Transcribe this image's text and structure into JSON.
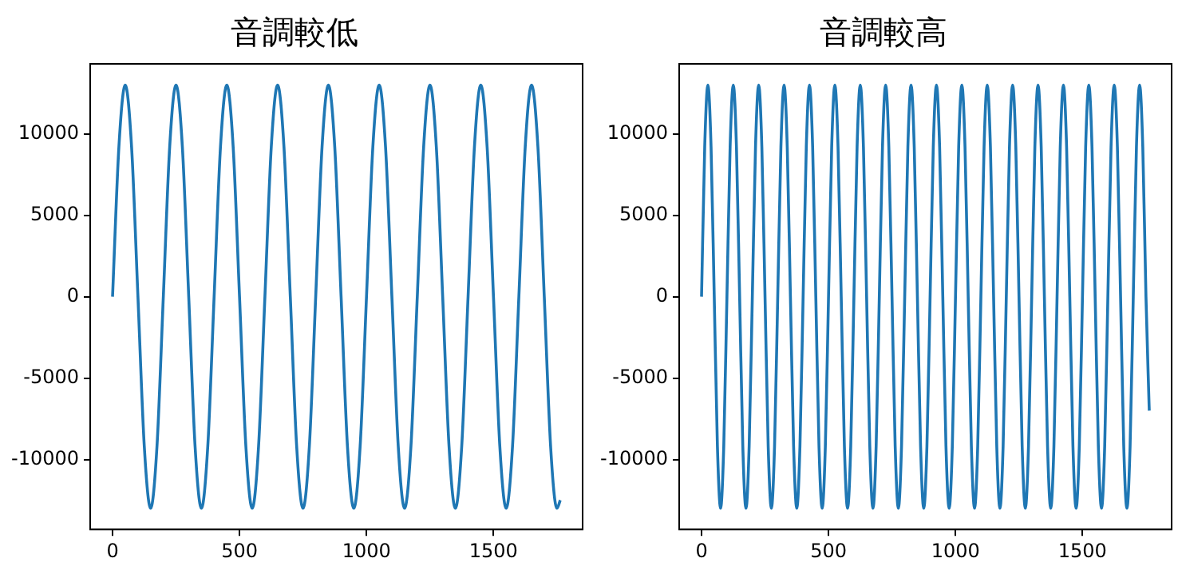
{
  "chart_data": [
    {
      "type": "line",
      "title": "音調較低",
      "marker": "none",
      "grid": false,
      "xlim": [
        -88,
        1851
      ],
      "xticks": [
        0,
        500,
        1000,
        1500
      ],
      "ylim": [
        -14300,
        14300
      ],
      "yticks": [
        -10000,
        -5000,
        0,
        5000,
        10000
      ],
      "series": [
        {
          "color": "#1f77b4",
          "x": [
            0,
            25,
            50,
            75,
            100,
            125,
            150,
            175,
            200,
            225,
            250,
            275,
            300,
            325,
            350,
            375,
            400,
            425,
            450,
            475,
            500,
            525,
            550,
            575,
            600,
            625,
            650,
            675,
            700,
            725,
            750,
            775,
            800,
            825,
            850,
            875,
            900,
            925,
            950,
            975,
            1000,
            1025,
            1050,
            1075,
            1100,
            1125,
            1150,
            1175,
            1200,
            1225,
            1250,
            1275,
            1300,
            1325,
            1350,
            1375,
            1400,
            1425,
            1450,
            1475,
            1500,
            1525,
            1550,
            1575,
            1600,
            1625,
            1650,
            1675,
            1700,
            1725,
            1750,
            1763
          ],
          "values": [
            0,
            9190,
            13000,
            9190,
            0,
            -9190,
            -13000,
            -9190,
            0,
            9190,
            13000,
            9190,
            0,
            -9190,
            -13000,
            -9190,
            0,
            9190,
            13000,
            9190,
            0,
            -9190,
            -13000,
            -9190,
            0,
            9190,
            13000,
            9190,
            0,
            -9190,
            -13000,
            -9190,
            0,
            9190,
            13000,
            9190,
            0,
            -9190,
            -13000,
            -9190,
            0,
            9190,
            13000,
            9190,
            0,
            -9190,
            -13000,
            -9190,
            0,
            9190,
            13000,
            9190,
            0,
            -9190,
            -13000,
            -9190,
            0,
            9190,
            13000,
            9190,
            0,
            -9190,
            -13000,
            -9190,
            0,
            9190,
            13000,
            9190,
            0,
            -9190,
            -13000,
            -12500
          ]
        }
      ]
    },
    {
      "type": "line",
      "title": "音調較高",
      "marker": "none",
      "grid": false,
      "xlim": [
        -88,
        1851
      ],
      "xticks": [
        0,
        500,
        1000,
        1500
      ],
      "ylim": [
        -14300,
        14300
      ],
      "yticks": [
        -10000,
        -5000,
        0,
        5000,
        10000
      ],
      "series": [
        {
          "color": "#1f77b4",
          "x": [
            0,
            12.5,
            25,
            37.5,
            50,
            62.5,
            75,
            87.5,
            100,
            112.5,
            125,
            137.5,
            150,
            162.5,
            175,
            187.5,
            200,
            212.5,
            225,
            237.5,
            250,
            262.5,
            275,
            287.5,
            300,
            312.5,
            325,
            337.5,
            350,
            362.5,
            375,
            387.5,
            400,
            412.5,
            425,
            437.5,
            450,
            462.5,
            475,
            487.5,
            500,
            512.5,
            525,
            537.5,
            550,
            562.5,
            575,
            587.5,
            600,
            612.5,
            625,
            637.5,
            650,
            662.5,
            675,
            687.5,
            700,
            712.5,
            725,
            737.5,
            750,
            762.5,
            775,
            787.5,
            800,
            812.5,
            825,
            837.5,
            850,
            862.5,
            875,
            887.5,
            900,
            912.5,
            925,
            937.5,
            950,
            962.5,
            975,
            987.5,
            1000,
            1012.5,
            1025,
            1037.5,
            1050,
            1062.5,
            1075,
            1087.5,
            1100,
            1112.5,
            1125,
            1137.5,
            1150,
            1162.5,
            1175,
            1187.5,
            1200,
            1212.5,
            1225,
            1237.5,
            1250,
            1262.5,
            1275,
            1287.5,
            1300,
            1312.5,
            1325,
            1337.5,
            1350,
            1362.5,
            1375,
            1387.5,
            1400,
            1412.5,
            1425,
            1437.5,
            1450,
            1462.5,
            1475,
            1487.5,
            1500,
            1512.5,
            1525,
            1537.5,
            1550,
            1562.5,
            1575,
            1587.5,
            1600,
            1612.5,
            1625,
            1637.5,
            1650,
            1662.5,
            1675,
            1687.5,
            1700,
            1712.5,
            1725,
            1737.5,
            1750,
            1763
          ],
          "values": [
            0,
            9190,
            13000,
            9190,
            0,
            -9190,
            -13000,
            -9190,
            0,
            9190,
            13000,
            9190,
            0,
            -9190,
            -13000,
            -9190,
            0,
            9190,
            13000,
            9190,
            0,
            -9190,
            -13000,
            -9190,
            0,
            9190,
            13000,
            9190,
            0,
            -9190,
            -13000,
            -9190,
            0,
            9190,
            13000,
            9190,
            0,
            -9190,
            -13000,
            -9190,
            0,
            9190,
            13000,
            9190,
            0,
            -9190,
            -13000,
            -9190,
            0,
            9190,
            13000,
            9190,
            0,
            -9190,
            -13000,
            -9190,
            0,
            9190,
            13000,
            9190,
            0,
            -9190,
            -13000,
            -9190,
            0,
            9190,
            13000,
            9190,
            0,
            -9190,
            -13000,
            -9190,
            0,
            9190,
            13000,
            9190,
            0,
            -9190,
            -13000,
            -9190,
            0,
            9190,
            13000,
            9190,
            0,
            -9190,
            -13000,
            -9190,
            0,
            9190,
            13000,
            9190,
            0,
            -9190,
            -13000,
            -9190,
            0,
            9190,
            13000,
            9190,
            0,
            -9190,
            -13000,
            -9190,
            0,
            9190,
            13000,
            9190,
            0,
            -9190,
            -13000,
            -9190,
            0,
            9190,
            13000,
            9190,
            0,
            -9190,
            -13000,
            -9190,
            0,
            9190,
            13000,
            9190,
            0,
            -9190,
            -13000,
            -9190,
            0,
            9190,
            13000,
            9190,
            0,
            -9190,
            -13000,
            -9190,
            0,
            9190,
            13000,
            9190,
            0,
            -7000
          ]
        }
      ]
    }
  ]
}
